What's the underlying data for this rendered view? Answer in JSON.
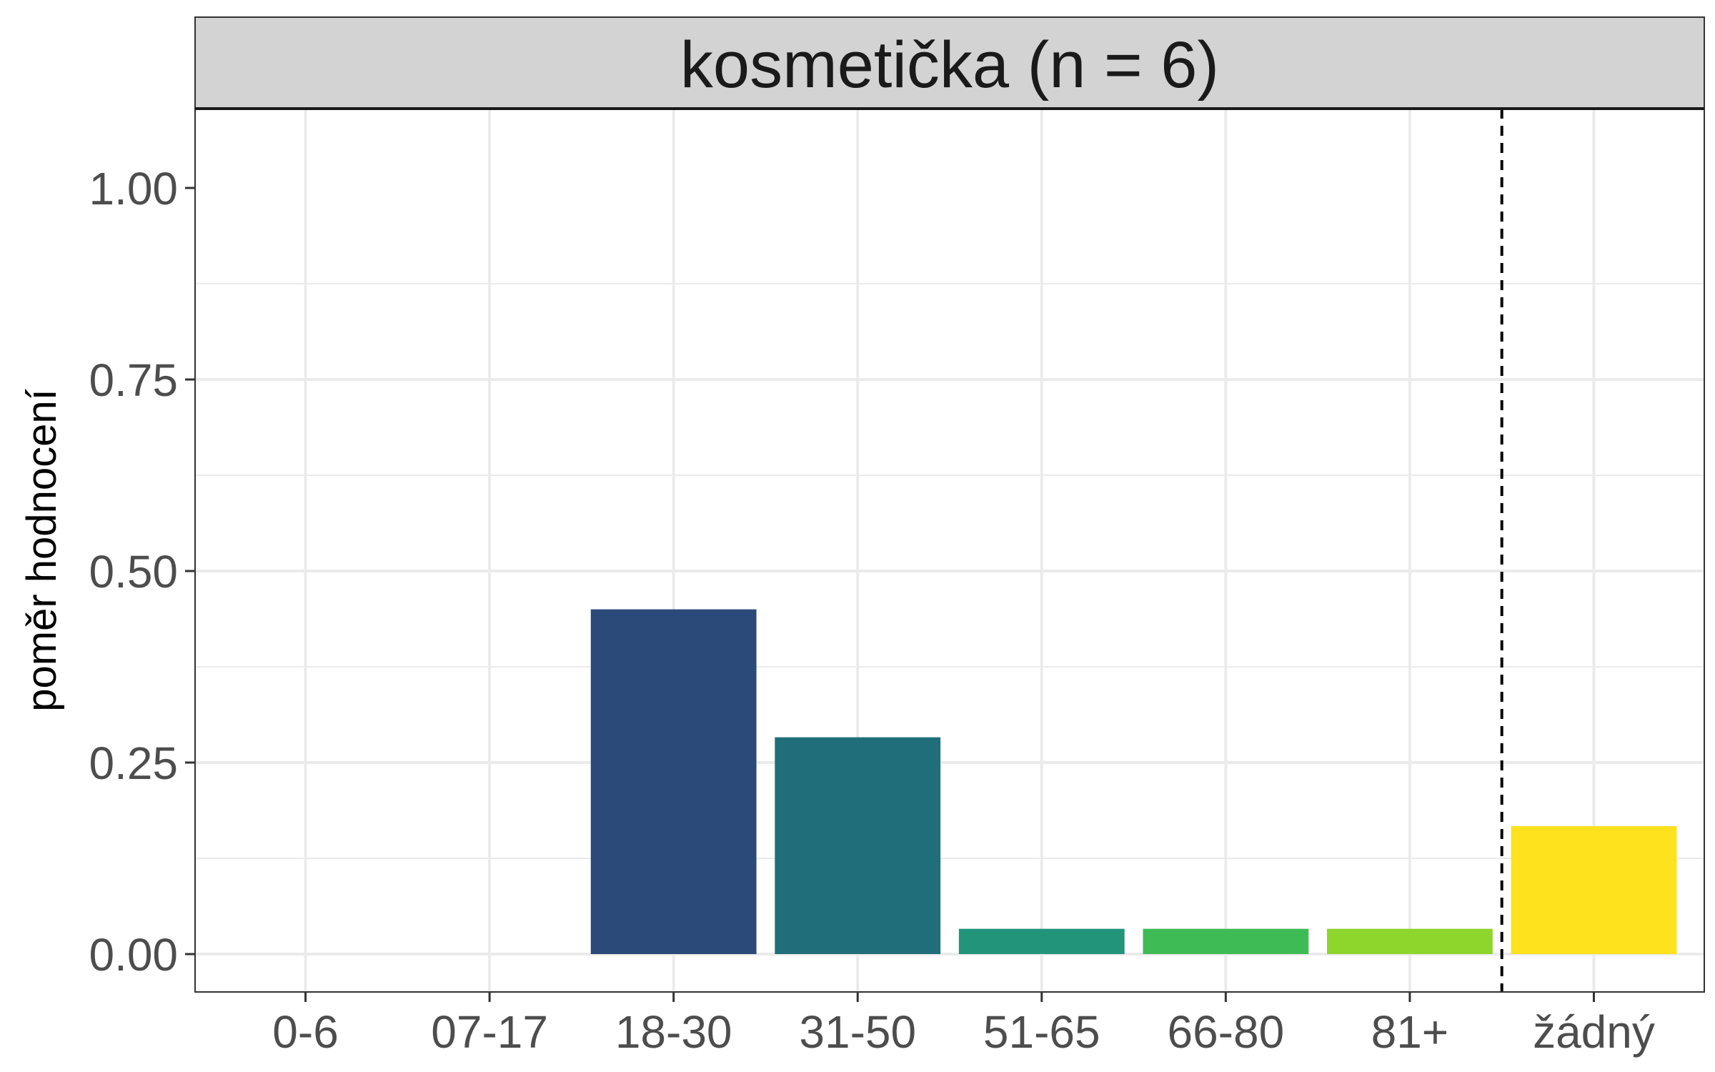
{
  "chart_data": {
    "type": "bar",
    "title": "kosmetička (n = 6)",
    "xlabel": "",
    "ylabel": "poměr hodnocení",
    "categories": [
      "0-6",
      "07-17",
      "18-30",
      "31-50",
      "51-65",
      "66-80",
      "81+",
      "žádný"
    ],
    "values": [
      0,
      0,
      0.45,
      0.283,
      0.033,
      0.033,
      0.033,
      0.167
    ],
    "colors": [
      "#440154",
      "#46337e",
      "#2b4a7a",
      "#206e7a",
      "#21947a",
      "#3fbb55",
      "#8ed52c",
      "#fde21d"
    ],
    "ylim": [
      0,
      1.1
    ],
    "yticks": [
      "0.00",
      "0.25",
      "0.50",
      "0.75",
      "1.00"
    ],
    "reference_line": {
      "style": "dashed",
      "between": [
        "81+",
        "žádný"
      ]
    },
    "grid": true,
    "legend": "none"
  }
}
